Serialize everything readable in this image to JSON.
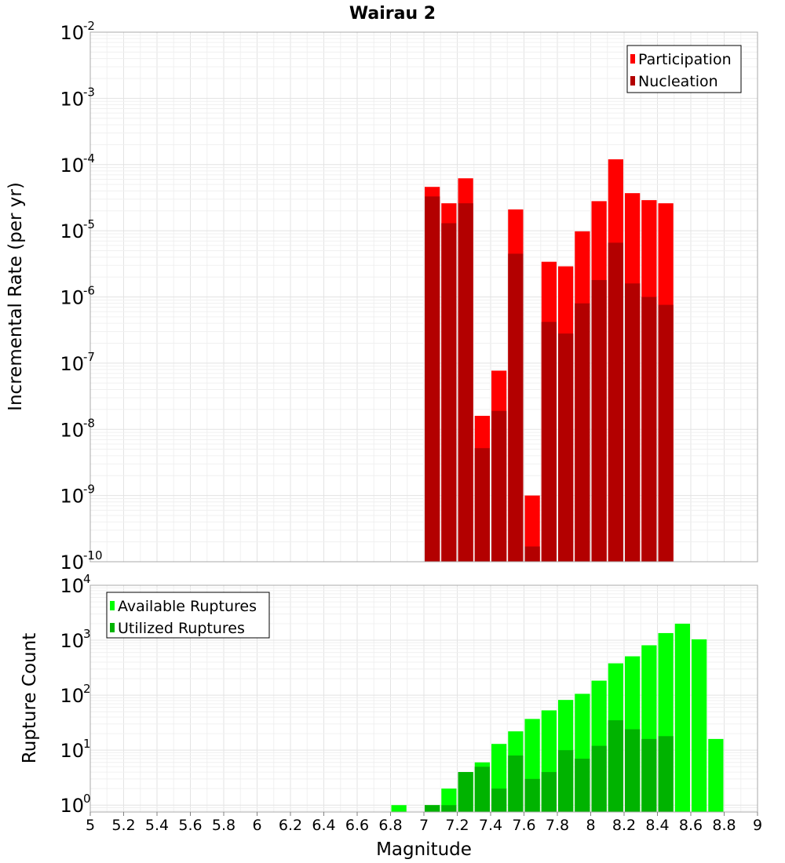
{
  "chart_data": [
    {
      "type": "bar",
      "title": "Wairau 2",
      "ylabel": "Incremental Rate (per yr)",
      "yscale": "log",
      "ylim": [
        1e-10,
        0.01
      ],
      "xlim": [
        5,
        9
      ],
      "y_ticks": [
        {
          "base": "10",
          "exp": "-2"
        },
        {
          "base": "10",
          "exp": "-3"
        },
        {
          "base": "10",
          "exp": "-4"
        },
        {
          "base": "10",
          "exp": "-5"
        },
        {
          "base": "10",
          "exp": "-6"
        },
        {
          "base": "10",
          "exp": "-7"
        },
        {
          "base": "10",
          "exp": "-8"
        },
        {
          "base": "10",
          "exp": "-9"
        },
        {
          "base": "10",
          "exp": "-10"
        }
      ],
      "grid": true,
      "legend_position": "top-right",
      "bin_width": 0.1,
      "x": [
        7.05,
        7.15,
        7.25,
        7.35,
        7.45,
        7.55,
        7.65,
        7.75,
        7.85,
        7.95,
        8.05,
        8.15,
        8.25,
        8.35,
        8.45
      ],
      "series": [
        {
          "name": "Participation",
          "color": "#ff0000",
          "values": [
            4.6e-05,
            2.6e-05,
            6.2e-05,
            1.6e-08,
            7.7e-08,
            2.1e-05,
            1e-09,
            3.4e-06,
            2.9e-06,
            9.8e-06,
            2.8e-05,
            0.00012,
            3.7e-05,
            2.9e-05,
            2.6e-05
          ]
        },
        {
          "name": "Nucleation",
          "color": "#b30000",
          "values": [
            3.3e-05,
            1.3e-05,
            2.6e-05,
            5.2e-09,
            1.9e-08,
            4.5e-06,
            1.7e-10,
            4.2e-07,
            2.8e-07,
            8e-07,
            1.8e-06,
            6.6e-06,
            1.6e-06,
            1e-06,
            7.6e-07
          ]
        }
      ]
    },
    {
      "type": "bar",
      "ylabel": "Rupture Count",
      "xlabel": "Magnitude",
      "yscale": "log",
      "ylim": [
        0.75,
        10000
      ],
      "xlim": [
        5,
        9
      ],
      "y_ticks": [
        {
          "value": 1,
          "base": "10",
          "exp": "0"
        },
        {
          "value": 10,
          "base": "10",
          "exp": "1"
        },
        {
          "value": 100,
          "base": "10",
          "exp": "2"
        },
        {
          "value": 1000,
          "base": "10",
          "exp": "3"
        },
        {
          "value": 10000,
          "base": "10",
          "exp": "4"
        }
      ],
      "x_ticks": [
        "5",
        "5.2",
        "5.4",
        "5.6",
        "5.8",
        "6",
        "6.2",
        "6.4",
        "6.6",
        "6.8",
        "7",
        "7.2",
        "7.4",
        "7.6",
        "7.8",
        "8",
        "8.2",
        "8.4",
        "8.6",
        "8.8",
        "9"
      ],
      "grid": true,
      "legend_position": "top-left",
      "bin_width": 0.1,
      "x": [
        6.85,
        7.05,
        7.15,
        7.25,
        7.35,
        7.45,
        7.55,
        7.65,
        7.75,
        7.85,
        7.95,
        8.05,
        8.15,
        8.25,
        8.35,
        8.45,
        8.55,
        8.65,
        8.75
      ],
      "series": [
        {
          "name": "Available Ruptures",
          "color": "#00ff00",
          "values": [
            1,
            1,
            2,
            4,
            6,
            13,
            22,
            37,
            53,
            82,
            106,
            184,
            380,
            510,
            810,
            1350,
            2000,
            1040,
            16
          ]
        },
        {
          "name": "Utilized Ruptures",
          "color": "#00b300",
          "values": [
            0,
            1,
            1,
            4,
            5,
            2,
            8,
            3,
            4,
            10,
            7,
            12,
            35,
            24,
            16,
            18,
            0,
            0,
            0
          ]
        }
      ]
    }
  ]
}
